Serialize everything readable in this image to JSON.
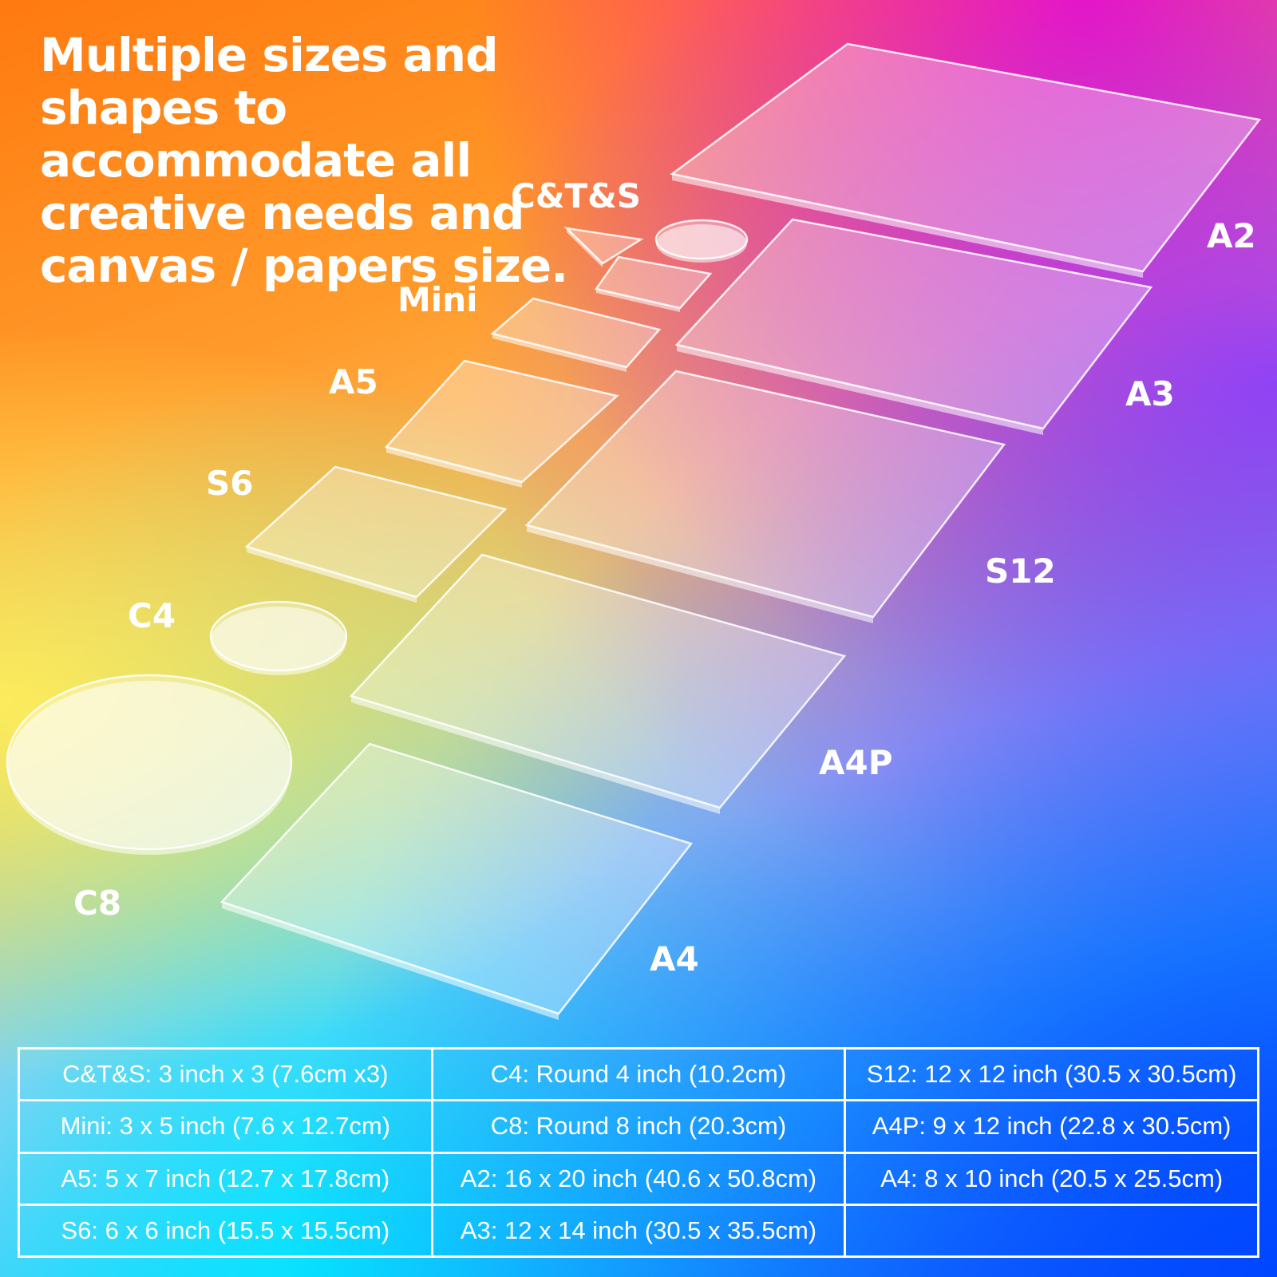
{
  "headline": "Multiple sizes and shapes to accommodate all creative needs and canvas / papers size.",
  "labels": {
    "cts": "C&T&S",
    "a2": "A2",
    "mini": "Mini",
    "a3": "A3",
    "a5": "A5",
    "s6": "S6",
    "s12": "S12",
    "c4": "C4",
    "a4p": "A4P",
    "c8": "C8",
    "a4": "A4"
  },
  "size_table": {
    "rows": [
      [
        "C&T&S: 3 inch x 3 (7.6cm x3)",
        "C4: Round 4 inch (10.2cm)",
        "S12: 12 x 12 inch (30.5 x 30.5cm)"
      ],
      [
        "Mini: 3 x 5 inch (7.6 x 12.7cm)",
        "C8: Round 8 inch (20.3cm)",
        "A4P: 9 x 12 inch (22.8 x 30.5cm)"
      ],
      [
        "A5: 5 x 7 inch (12.7 x 17.8cm)",
        "A2: 16 x 20 inch (40.6 x 50.8cm)",
        "A4: 8 x 10 inch (20.5 x 25.5cm)"
      ],
      [
        "S6: 6 x 6 inch (15.5 x 15.5cm)",
        "A3: 12 x 14 inch (30.5 x 35.5cm)",
        ""
      ]
    ]
  }
}
